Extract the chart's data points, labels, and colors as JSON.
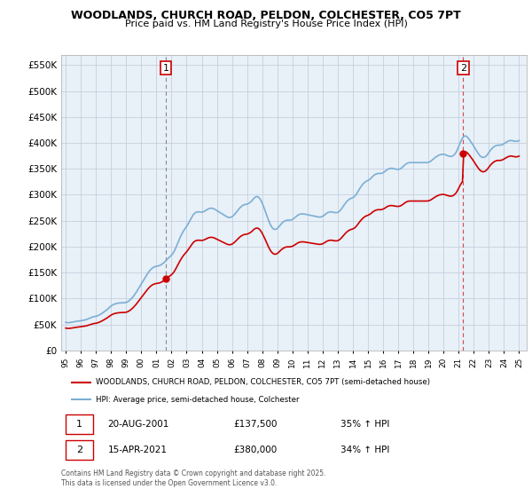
{
  "title": "WOODLANDS, CHURCH ROAD, PELDON, COLCHESTER, CO5 7PT",
  "subtitle": "Price paid vs. HM Land Registry's House Price Index (HPI)",
  "legend_line1": "WOODLANDS, CHURCH ROAD, PELDON, COLCHESTER, CO5 7PT (semi-detached house)",
  "legend_line2": "HPI: Average price, semi-detached house, Colchester",
  "footnote": "Contains HM Land Registry data © Crown copyright and database right 2025.\nThis data is licensed under the Open Government Licence v3.0.",
  "annotation1_date": "20-AUG-2001",
  "annotation1_price": "£137,500",
  "annotation1_hpi": "35% ↑ HPI",
  "annotation2_date": "15-APR-2021",
  "annotation2_price": "£380,000",
  "annotation2_hpi": "34% ↑ HPI",
  "red_color": "#cc0000",
  "blue_color": "#7bafd4",
  "chart_bg": "#e8f0f8",
  "grid_color": "#c0c8d8",
  "ylim": [
    0,
    570000
  ],
  "yticks": [
    0,
    50000,
    100000,
    150000,
    200000,
    250000,
    300000,
    350000,
    400000,
    450000,
    500000,
    550000
  ],
  "sale1_year": 2001.63,
  "sale1_price": 137500,
  "sale2_year": 2021.29,
  "sale2_price": 380000,
  "hpi_years": [
    1995.0,
    1995.083,
    1995.167,
    1995.25,
    1995.333,
    1995.417,
    1995.5,
    1995.583,
    1995.667,
    1995.75,
    1995.833,
    1995.917,
    1996.0,
    1996.083,
    1996.167,
    1996.25,
    1996.333,
    1996.417,
    1996.5,
    1996.583,
    1996.667,
    1996.75,
    1996.833,
    1996.917,
    1997.0,
    1997.083,
    1997.167,
    1997.25,
    1997.333,
    1997.417,
    1997.5,
    1997.583,
    1997.667,
    1997.75,
    1997.833,
    1997.917,
    1998.0,
    1998.083,
    1998.167,
    1998.25,
    1998.333,
    1998.417,
    1998.5,
    1998.583,
    1998.667,
    1998.75,
    1998.833,
    1998.917,
    1999.0,
    1999.083,
    1999.167,
    1999.25,
    1999.333,
    1999.417,
    1999.5,
    1999.583,
    1999.667,
    1999.75,
    1999.833,
    1999.917,
    2000.0,
    2000.083,
    2000.167,
    2000.25,
    2000.333,
    2000.417,
    2000.5,
    2000.583,
    2000.667,
    2000.75,
    2000.833,
    2000.917,
    2001.0,
    2001.083,
    2001.167,
    2001.25,
    2001.333,
    2001.417,
    2001.5,
    2001.583,
    2001.667,
    2001.75,
    2001.833,
    2001.917,
    2002.0,
    2002.083,
    2002.167,
    2002.25,
    2002.333,
    2002.417,
    2002.5,
    2002.583,
    2002.667,
    2002.75,
    2002.833,
    2002.917,
    2003.0,
    2003.083,
    2003.167,
    2003.25,
    2003.333,
    2003.417,
    2003.5,
    2003.583,
    2003.667,
    2003.75,
    2003.833,
    2003.917,
    2004.0,
    2004.083,
    2004.167,
    2004.25,
    2004.333,
    2004.417,
    2004.5,
    2004.583,
    2004.667,
    2004.75,
    2004.833,
    2004.917,
    2005.0,
    2005.083,
    2005.167,
    2005.25,
    2005.333,
    2005.417,
    2005.5,
    2005.583,
    2005.667,
    2005.75,
    2005.833,
    2005.917,
    2006.0,
    2006.083,
    2006.167,
    2006.25,
    2006.333,
    2006.417,
    2006.5,
    2006.583,
    2006.667,
    2006.75,
    2006.833,
    2006.917,
    2007.0,
    2007.083,
    2007.167,
    2007.25,
    2007.333,
    2007.417,
    2007.5,
    2007.583,
    2007.667,
    2007.75,
    2007.833,
    2007.917,
    2008.0,
    2008.083,
    2008.167,
    2008.25,
    2008.333,
    2008.417,
    2008.5,
    2008.583,
    2008.667,
    2008.75,
    2008.833,
    2008.917,
    2009.0,
    2009.083,
    2009.167,
    2009.25,
    2009.333,
    2009.417,
    2009.5,
    2009.583,
    2009.667,
    2009.75,
    2009.833,
    2009.917,
    2010.0,
    2010.083,
    2010.167,
    2010.25,
    2010.333,
    2010.417,
    2010.5,
    2010.583,
    2010.667,
    2010.75,
    2010.833,
    2010.917,
    2011.0,
    2011.083,
    2011.167,
    2011.25,
    2011.333,
    2011.417,
    2011.5,
    2011.583,
    2011.667,
    2011.75,
    2011.833,
    2011.917,
    2012.0,
    2012.083,
    2012.167,
    2012.25,
    2012.333,
    2012.417,
    2012.5,
    2012.583,
    2012.667,
    2012.75,
    2012.833,
    2012.917,
    2013.0,
    2013.083,
    2013.167,
    2013.25,
    2013.333,
    2013.417,
    2013.5,
    2013.583,
    2013.667,
    2013.75,
    2013.833,
    2013.917,
    2014.0,
    2014.083,
    2014.167,
    2014.25,
    2014.333,
    2014.417,
    2014.5,
    2014.583,
    2014.667,
    2014.75,
    2014.833,
    2014.917,
    2015.0,
    2015.083,
    2015.167,
    2015.25,
    2015.333,
    2015.417,
    2015.5,
    2015.583,
    2015.667,
    2015.75,
    2015.833,
    2015.917,
    2016.0,
    2016.083,
    2016.167,
    2016.25,
    2016.333,
    2016.417,
    2016.5,
    2016.583,
    2016.667,
    2016.75,
    2016.833,
    2016.917,
    2017.0,
    2017.083,
    2017.167,
    2017.25,
    2017.333,
    2017.417,
    2017.5,
    2017.583,
    2017.667,
    2017.75,
    2017.833,
    2017.917,
    2018.0,
    2018.083,
    2018.167,
    2018.25,
    2018.333,
    2018.417,
    2018.5,
    2018.583,
    2018.667,
    2018.75,
    2018.833,
    2018.917,
    2019.0,
    2019.083,
    2019.167,
    2019.25,
    2019.333,
    2019.417,
    2019.5,
    2019.583,
    2019.667,
    2019.75,
    2019.833,
    2019.917,
    2020.0,
    2020.083,
    2020.167,
    2020.25,
    2020.333,
    2020.417,
    2020.5,
    2020.583,
    2020.667,
    2020.75,
    2020.833,
    2020.917,
    2021.0,
    2021.083,
    2021.167,
    2021.25,
    2021.333,
    2021.417,
    2021.5,
    2021.583,
    2021.667,
    2021.75,
    2021.833,
    2021.917,
    2022.0,
    2022.083,
    2022.167,
    2022.25,
    2022.333,
    2022.417,
    2022.5,
    2022.583,
    2022.667,
    2022.75,
    2022.833,
    2022.917,
    2023.0,
    2023.083,
    2023.167,
    2023.25,
    2023.333,
    2023.417,
    2023.5,
    2023.583,
    2023.667,
    2023.75,
    2023.833,
    2023.917,
    2024.0,
    2024.083,
    2024.167,
    2024.25,
    2024.333,
    2024.417,
    2024.5,
    2024.583,
    2024.667,
    2024.75,
    2024.833,
    2024.917,
    2025.0
  ],
  "hpi_values": [
    54000,
    53500,
    53200,
    53500,
    53800,
    54200,
    54800,
    55300,
    55800,
    56200,
    56500,
    56800,
    57200,
    57600,
    58000,
    58500,
    59200,
    60000,
    61000,
    62000,
    63000,
    64000,
    64800,
    65200,
    65800,
    66500,
    67500,
    68800,
    70200,
    71800,
    73500,
    75200,
    77000,
    79000,
    81200,
    83500,
    85500,
    87200,
    88500,
    89500,
    90200,
    90800,
    91200,
    91500,
    91700,
    91800,
    91900,
    92000,
    92500,
    93500,
    95000,
    97000,
    99500,
    102000,
    105000,
    108500,
    112000,
    116000,
    120000,
    124000,
    128000,
    132000,
    136000,
    140000,
    144000,
    148000,
    151500,
    154500,
    157000,
    159000,
    160500,
    161500,
    162000,
    162500,
    163200,
    164200,
    165500,
    167200,
    169200,
    171500,
    174000,
    176500,
    179000,
    181200,
    183500,
    186500,
    190500,
    195500,
    201000,
    207000,
    213000,
    218500,
    223500,
    228000,
    232000,
    235500,
    239000,
    243000,
    247500,
    252000,
    256500,
    260500,
    263500,
    265500,
    266500,
    267000,
    267000,
    266800,
    266500,
    267000,
    268000,
    269500,
    271000,
    272500,
    273500,
    274000,
    274000,
    273500,
    272500,
    271000,
    269500,
    268000,
    266500,
    265000,
    263500,
    262000,
    260500,
    259000,
    257500,
    256500,
    256000,
    256500,
    257500,
    259500,
    262000,
    265000,
    268000,
    271000,
    274000,
    276500,
    278500,
    280000,
    281000,
    281500,
    282000,
    283000,
    284500,
    286500,
    289000,
    292000,
    294500,
    296000,
    296500,
    295500,
    293000,
    289000,
    284000,
    278000,
    271500,
    264500,
    257500,
    251000,
    245000,
    240000,
    236500,
    234000,
    233000,
    233500,
    235000,
    237500,
    240500,
    243500,
    246000,
    248000,
    249500,
    250500,
    251000,
    251000,
    251000,
    251500,
    252500,
    254000,
    256000,
    258000,
    260000,
    261500,
    262500,
    263000,
    263000,
    263000,
    262500,
    262000,
    261500,
    261000,
    260500,
    260000,
    259500,
    259000,
    258500,
    258000,
    257500,
    257000,
    257000,
    257500,
    258500,
    260000,
    262000,
    264000,
    265500,
    266500,
    267000,
    267000,
    266500,
    266000,
    265500,
    265500,
    266000,
    267500,
    270000,
    273000,
    276500,
    280000,
    283500,
    286500,
    289000,
    291000,
    292500,
    293500,
    294500,
    296000,
    298500,
    302000,
    306000,
    310000,
    314000,
    317500,
    320500,
    323000,
    325000,
    326500,
    327500,
    329000,
    331000,
    333500,
    336000,
    338000,
    339500,
    340500,
    341000,
    341000,
    341000,
    341500,
    342500,
    344000,
    346000,
    348000,
    349500,
    350500,
    351000,
    351000,
    350500,
    350000,
    349500,
    349000,
    349000,
    349500,
    350500,
    352500,
    354500,
    357000,
    359000,
    360500,
    361500,
    362000,
    362000,
    362000,
    362000,
    362000,
    362000,
    362000,
    362000,
    362000,
    362000,
    362000,
    362000,
    362000,
    362000,
    362000,
    362500,
    363500,
    365000,
    367000,
    369000,
    371000,
    373000,
    374500,
    376000,
    377000,
    377500,
    378000,
    378000,
    377500,
    376500,
    375500,
    374500,
    374000,
    374000,
    374500,
    376000,
    378500,
    382000,
    387000,
    393000,
    399000,
    404500,
    409000,
    412000,
    413500,
    413000,
    411000,
    408000,
    404500,
    401000,
    397500,
    393500,
    389500,
    385500,
    381500,
    378000,
    375000,
    373000,
    372000,
    372000,
    373000,
    375000,
    378000,
    381500,
    385000,
    388000,
    390500,
    392500,
    394000,
    395000,
    395500,
    395500,
    395500,
    396000,
    397000,
    398500,
    400000,
    401500,
    403000,
    404000,
    404500,
    404500,
    404000,
    403500,
    403000,
    403000,
    403500,
    404500
  ]
}
